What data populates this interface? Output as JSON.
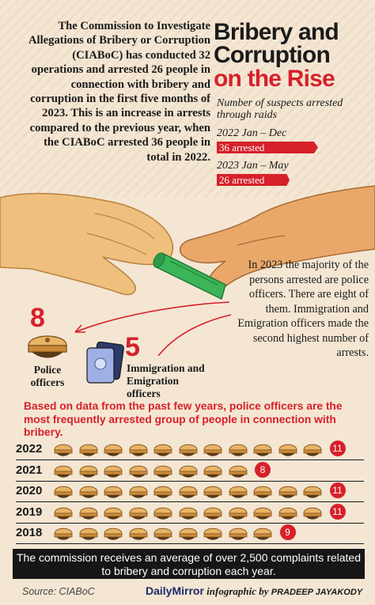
{
  "intro_text": "The Commission to Investigate Allegations of Bribery or Corruption (CIABoC) has conducted 32 operations and arrested 26 people in connection with bribery and corruption in the first five months of 2023. This is an increase in arrests compared to the previous year, when the CIABoC arrested 36 people in total in 2022.",
  "title": {
    "line1": "Bribery and",
    "line2": "Corruption",
    "line3": "on the Rise"
  },
  "subtitle": "Number of suspects arrested through raids",
  "arrest_bars": [
    {
      "period": "2022 Jan – Dec",
      "label": "36 arrested",
      "value": 36
    },
    {
      "period": "2023 Jan – May",
      "label": "26 arrested",
      "value": 26
    }
  ],
  "side_text": "In 2023 the majority of the persons arrested are police officers. There are eight of them. Immigration and Emigration officers made the second highest number of arrests.",
  "groups": {
    "police": {
      "count": "8",
      "label": "Police officers"
    },
    "immigration": {
      "count": "5",
      "label": "Immigration and Emigration officers"
    }
  },
  "history_title": "Based on data from the past few years, police officers are the most frequently arrested group of people in connection with bribery.",
  "police_by_year": [
    {
      "year": "2022",
      "count": 11
    },
    {
      "year": "2021",
      "count": 8
    },
    {
      "year": "2020",
      "count": 11
    },
    {
      "year": "2019",
      "count": 11
    },
    {
      "year": "2018",
      "count": 9
    }
  ],
  "footer_note": "The commission receives an average of over 2,500 complaints related to bribery and corruption each year.",
  "source": "Source: CIABoC",
  "credit": {
    "brand": "DailyMirror",
    "middle": "infographic by",
    "author": "PRADEEP JAYAKODY"
  },
  "colors": {
    "accent": "#d7202a",
    "cap": "#e8b466",
    "background": "#f4e6d3"
  },
  "icons": [
    "police-cap-icon",
    "passport-icon",
    "banknote-icon",
    "hand-icon"
  ]
}
